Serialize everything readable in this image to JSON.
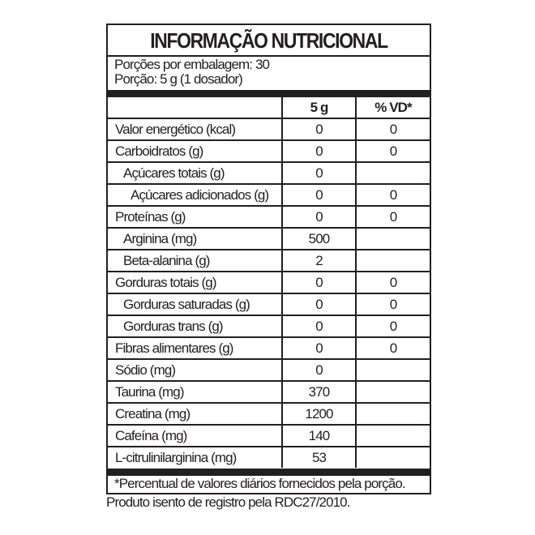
{
  "title": "INFORMAÇÃO NUTRICIONAL",
  "servings_per_package": "Porções por embalagem: 30",
  "serving_size": "Porção: 5 g (1 dosador)",
  "columns": [
    "",
    "5 g",
    "% VD*"
  ],
  "rows": [
    {
      "name": "Valor energético (kcal)",
      "amount": "0",
      "vd": "0",
      "indent": 0
    },
    {
      "name": "Carboidratos (g)",
      "amount": "0",
      "vd": "0",
      "indent": 0
    },
    {
      "name": "Açúcares totais (g)",
      "amount": "0",
      "vd": "",
      "indent": 1
    },
    {
      "name": "Açúcares adicionados (g)",
      "amount": "0",
      "vd": "0",
      "indent": 2
    },
    {
      "name": "Proteínas (g)",
      "amount": "0",
      "vd": "0",
      "indent": 0
    },
    {
      "name": "Arginina (mg)",
      "amount": "500",
      "vd": "",
      "indent": 1
    },
    {
      "name": "Beta-alanina (g)",
      "amount": "2",
      "vd": "",
      "indent": 1
    },
    {
      "name": "Gorduras totais (g)",
      "amount": "0",
      "vd": "0",
      "indent": 0
    },
    {
      "name": "Gorduras saturadas (g)",
      "amount": "0",
      "vd": "0",
      "indent": 1
    },
    {
      "name": "Gorduras trans (g)",
      "amount": "0",
      "vd": "0",
      "indent": 1
    },
    {
      "name": "Fibras alimentares (g)",
      "amount": "0",
      "vd": "0",
      "indent": 0
    },
    {
      "name": "Sódio (mg)",
      "amount": "0",
      "vd": "",
      "indent": 0
    },
    {
      "name": "Taurina (mg)",
      "amount": "370",
      "vd": "",
      "indent": 0
    },
    {
      "name": "Creatina (mg)",
      "amount": "1200",
      "vd": "",
      "indent": 0
    },
    {
      "name": "Cafeína (mg)",
      "amount": "140",
      "vd": "",
      "indent": 0
    },
    {
      "name": "L-citrulinilarginina (mg)",
      "amount": "53",
      "vd": "",
      "indent": 0
    }
  ],
  "footnote": "*Percentual de valores diários fornecidos pela porção.",
  "registration_note": "Produto isento de registro pela RDC27/2010."
}
